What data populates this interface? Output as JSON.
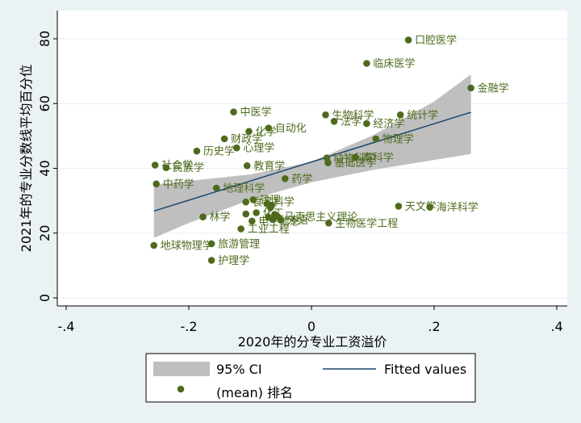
{
  "chart_data": {
    "type": "scatter",
    "xlabel": "2020年的分专业工资溢价",
    "ylabel": "2021年的专业分数线平均百分位",
    "xlim": [
      -0.4,
      0.4
    ],
    "ylim": [
      0,
      85
    ],
    "x_ticks": [
      {
        "value": -0.4,
        "label": "-.4"
      },
      {
        "value": -0.2,
        "label": "-.2"
      },
      {
        "value": 0,
        "label": "0"
      },
      {
        "value": 0.2,
        "label": ".2"
      },
      {
        "value": 0.4,
        "label": ".4"
      }
    ],
    "y_ticks": [
      {
        "value": 0,
        "label": "0"
      },
      {
        "value": 20,
        "label": "20"
      },
      {
        "value": 40,
        "label": "40"
      },
      {
        "value": 60,
        "label": "60"
      },
      {
        "value": 80,
        "label": "80"
      }
    ],
    "grid": "horizontal",
    "colors": {
      "point": "#4e6b1d",
      "fit_line": "#1a476f",
      "ci_band": "#bfbfbf",
      "plot_bg": "#ffffff",
      "page_bg": "#eaf2f3"
    },
    "fitted_values": {
      "x": [
        -0.257,
        0.26
      ],
      "y": [
        26.8,
        57.3
      ]
    },
    "ci_band": {
      "x": [
        -0.257,
        -0.2,
        -0.1,
        0.0,
        0.1,
        0.2,
        0.26
      ],
      "lower": [
        18.5,
        23.1,
        30.3,
        35.7,
        39.5,
        42.6,
        44.4
      ],
      "upper": [
        35.0,
        36.1,
        38.1,
        42.0,
        50.2,
        60.6,
        69.0
      ]
    },
    "points": [
      {
        "label": "口腔医学",
        "x": 0.158,
        "y": 79.6
      },
      {
        "label": "临床医学",
        "x": 0.09,
        "y": 72.4
      },
      {
        "label": "金融学",
        "x": 0.26,
        "y": 64.8
      },
      {
        "label": "中医学",
        "x": -0.127,
        "y": 57.4
      },
      {
        "label": "生物科学",
        "x": 0.023,
        "y": 56.5
      },
      {
        "label": "统计学",
        "x": 0.145,
        "y": 56.5
      },
      {
        "label": "法学",
        "x": 0.037,
        "y": 54.5
      },
      {
        "label": "经济学",
        "x": 0.09,
        "y": 53.8
      },
      {
        "label": "自动化",
        "x": -0.07,
        "y": 52.4
      },
      {
        "label": "化学",
        "x": -0.102,
        "y": 51.4
      },
      {
        "label": "财政学",
        "x": -0.142,
        "y": 49.1
      },
      {
        "label": "物理学",
        "x": 0.105,
        "y": 49.1
      },
      {
        "label": "心理学",
        "x": -0.122,
        "y": 46.3
      },
      {
        "label": "历史学",
        "x": -0.187,
        "y": 45.3
      },
      {
        "label": "动物科学",
        "x": 0.025,
        "y": 43.2
      },
      {
        "label": "畜科学",
        "x": 0.072,
        "y": 43.4
      },
      {
        "label": "基础医学",
        "x": 0.027,
        "y": 41.7
      },
      {
        "label": "教育学",
        "x": -0.105,
        "y": 40.8
      },
      {
        "label": "社会学",
        "x": -0.255,
        "y": 41.0
      },
      {
        "label": "民族学",
        "x": -0.237,
        "y": 40.2
      },
      {
        "label": "药学",
        "x": -0.043,
        "y": 36.8
      },
      {
        "label": "中药学",
        "x": -0.253,
        "y": 35.2
      },
      {
        "label": "地理科学",
        "x": -0.155,
        "y": 33.9
      },
      {
        "label": "管理",
        "x": -0.095,
        "y": 30.3
      },
      {
        "label": "食品科学",
        "x": -0.107,
        "y": 29.6
      },
      {
        "label": "",
        "x": -0.072,
        "y": 29.0
      },
      {
        "label": "",
        "x": -0.065,
        "y": 28.5
      },
      {
        "label": "",
        "x": -0.067,
        "y": 27.9
      },
      {
        "label": "化工",
        "x": -0.09,
        "y": 26.3
      },
      {
        "label": "",
        "x": -0.107,
        "y": 25.9
      },
      {
        "label": "",
        "x": -0.06,
        "y": 25.8
      },
      {
        "label": "马克思主义理论",
        "x": -0.055,
        "y": 25.1
      },
      {
        "label": "",
        "x": -0.07,
        "y": 24.9
      },
      {
        "label": "",
        "x": -0.063,
        "y": 24.2
      },
      {
        "label": "外语",
        "x": -0.05,
        "y": 24.0
      },
      {
        "label": "林学",
        "x": -0.177,
        "y": 25.0
      },
      {
        "label": "电子信息",
        "x": -0.097,
        "y": 23.7
      },
      {
        "label": "生物医学工程",
        "x": 0.028,
        "y": 23.1
      },
      {
        "label": "天文学",
        "x": 0.142,
        "y": 28.3
      },
      {
        "label": "海洋科学",
        "x": 0.193,
        "y": 28.0
      },
      {
        "label": "工业工程",
        "x": -0.115,
        "y": 21.3
      },
      {
        "label": "地球物理学",
        "x": -0.257,
        "y": 16.2
      },
      {
        "label": "旅游管理",
        "x": -0.163,
        "y": 16.7
      },
      {
        "label": "护理学",
        "x": -0.163,
        "y": 11.6
      }
    ],
    "legend": [
      {
        "label": "95% CI",
        "kind": "ci"
      },
      {
        "label": "Fitted values",
        "kind": "line"
      },
      {
        "label": "(mean) 排名",
        "kind": "point"
      }
    ],
    "legend_position": "bottom"
  }
}
